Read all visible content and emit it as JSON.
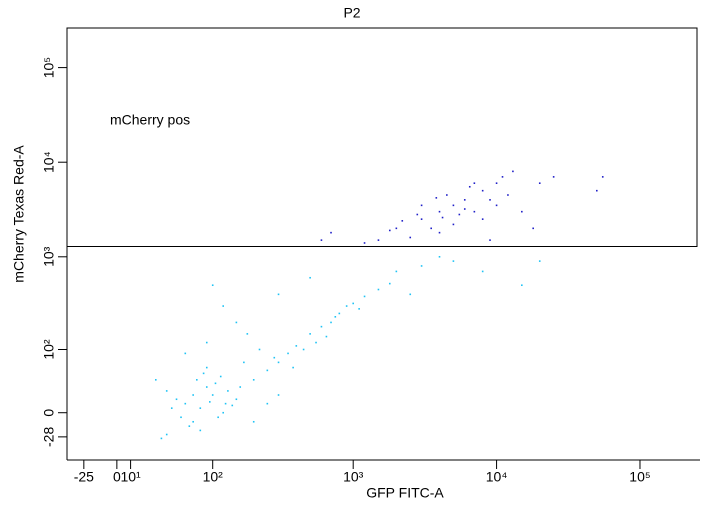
{
  "chart_data": {
    "type": "scatter",
    "title": "P2",
    "x_label": "GFP FITC-A",
    "y_label": "mCherry Texas Red-A",
    "xscale": "biexponential",
    "yscale": "biexponential",
    "xlim": [
      -40,
      262144
    ],
    "ylim": [
      -64,
      262144
    ],
    "xticks": [
      -25,
      0,
      {
        "value": 10,
        "label": "10¹"
      },
      {
        "value": 100,
        "label": "10²"
      },
      {
        "value": 1000,
        "label": "10³"
      },
      {
        "value": 10000,
        "label": "10⁴"
      },
      {
        "value": 100000,
        "label": "10⁵"
      }
    ],
    "yticks": [
      -28,
      0,
      {
        "value": 100,
        "label": "10²"
      },
      {
        "value": 1000,
        "label": "10³"
      },
      {
        "value": 10000,
        "label": "10⁴"
      },
      {
        "value": 100000,
        "label": "10⁵"
      }
    ],
    "gate": {
      "label": "mCherry pos",
      "x": [
        -40,
        262144
      ],
      "y": [
        1285,
        262144
      ]
    },
    "series": [
      {
        "color": "#1ec3f5",
        "x": [
          60,
          80,
          100,
          70,
          90,
          120,
          50,
          110,
          75,
          95,
          130,
          65,
          85,
          140,
          55,
          105,
          70,
          150,
          45,
          115,
          80,
          160,
          40,
          125,
          90,
          200,
          250,
          300,
          350,
          400,
          450,
          500,
          600,
          700,
          800,
          900,
          1000,
          1200,
          1500,
          1800,
          650,
          550,
          750,
          1100,
          380,
          280,
          220,
          180,
          150,
          120,
          100,
          300,
          500,
          2000,
          3000,
          5000,
          4000,
          8000,
          2500,
          15000,
          20000,
          35,
          30,
          200,
          250,
          170,
          60,
          40,
          300,
          90
        ],
        "y": [
          10,
          5,
          20,
          -10,
          30,
          0,
          15,
          -5,
          40,
          12,
          25,
          -15,
          50,
          8,
          -5,
          35,
          20,
          15,
          5,
          45,
          -20,
          30,
          25,
          10,
          60,
          40,
          55,
          70,
          90,
          110,
          100,
          150,
          180,
          200,
          250,
          300,
          320,
          380,
          450,
          520,
          140,
          120,
          230,
          280,
          60,
          80,
          100,
          150,
          200,
          300,
          500,
          400,
          600,
          700,
          800,
          900,
          1000,
          700,
          400,
          500,
          900,
          -30,
          40,
          -10,
          10,
          70,
          90,
          -25,
          20,
          120
        ]
      },
      {
        "color": "#1f1fc8",
        "x": [
          3000,
          5000,
          4000,
          6000,
          8000,
          2000,
          7000,
          10000,
          3500,
          4500,
          5500,
          9000,
          2500,
          6500,
          12000,
          1500,
          3000,
          4000,
          8000,
          11000,
          5000,
          7000,
          2800,
          1200,
          600,
          15000,
          20000,
          25000,
          50000,
          55000,
          18000,
          9000,
          3800,
          6000,
          4200,
          10000,
          13000,
          2200,
          1800,
          700
        ],
        "y": [
          2500,
          3500,
          3000,
          4000,
          5000,
          2000,
          3000,
          6000,
          2000,
          4500,
          2800,
          4000,
          1600,
          5500,
          4500,
          1500,
          3500,
          1800,
          2500,
          7000,
          2200,
          6000,
          2800,
          1400,
          1500,
          3000,
          6000,
          7000,
          5000,
          7000,
          2000,
          1500,
          4200,
          3200,
          2600,
          3500,
          8000,
          2400,
          1900,
          1800
        ]
      }
    ]
  }
}
